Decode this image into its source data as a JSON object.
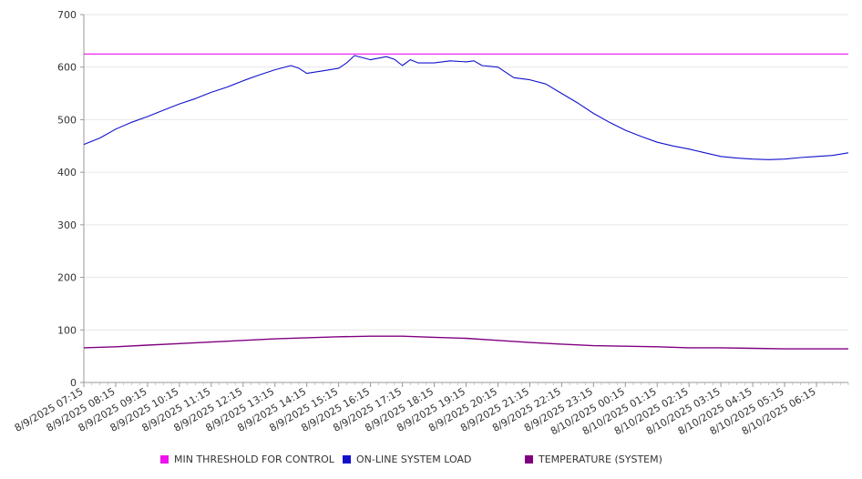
{
  "chart_data": {
    "type": "line",
    "ylim": [
      0,
      700
    ],
    "yticks": [
      0,
      100,
      200,
      300,
      400,
      500,
      600,
      700
    ],
    "grid": "horizontal",
    "legend_position": "bottom",
    "x_tick_labels": [
      "8/9/2025 07:15",
      "8/9/2025 08:15",
      "8/9/2025 09:15",
      "8/9/2025 10:15",
      "8/9/2025 11:15",
      "8/9/2025 12:15",
      "8/9/2025 13:15",
      "8/9/2025 14:15",
      "8/9/2025 15:15",
      "8/9/2025 16:15",
      "8/9/2025 17:15",
      "8/9/2025 18:15",
      "8/9/2025 19:15",
      "8/9/2025 20:15",
      "8/9/2025 21:15",
      "8/9/2025 22:15",
      "8/9/2025 23:15",
      "8/10/2025 00:15",
      "8/10/2025 01:15",
      "8/10/2025 02:15",
      "8/10/2025 03:15",
      "8/10/2025 04:15",
      "8/10/2025 05:15",
      "8/10/2025 06:15"
    ],
    "x_range": [
      "8/9/2025 07:15",
      "8/10/2025 07:15"
    ],
    "series": [
      {
        "name": "MIN THRESHOLD FOR CONTROL",
        "color": "#ee11ee",
        "points": [
          [
            "8/9/2025 07:15",
            625
          ],
          [
            "8/10/2025 07:15",
            625
          ]
        ]
      },
      {
        "name": "ON-LINE SYSTEM LOAD",
        "color": "#1111cc",
        "points": [
          [
            "8/9/2025 07:15",
            453
          ],
          [
            "8/9/2025 07:45",
            465
          ],
          [
            "8/9/2025 08:15",
            482
          ],
          [
            "8/9/2025 08:45",
            495
          ],
          [
            "8/9/2025 09:15",
            506
          ],
          [
            "8/9/2025 09:45",
            518
          ],
          [
            "8/9/2025 10:15",
            530
          ],
          [
            "8/9/2025 10:45",
            540
          ],
          [
            "8/9/2025 11:15",
            552
          ],
          [
            "8/9/2025 11:45",
            562
          ],
          [
            "8/9/2025 12:15",
            574
          ],
          [
            "8/9/2025 12:45",
            585
          ],
          [
            "8/9/2025 13:15",
            595
          ],
          [
            "8/9/2025 13:45",
            603
          ],
          [
            "8/9/2025 14:00",
            598
          ],
          [
            "8/9/2025 14:15",
            588
          ],
          [
            "8/9/2025 14:45",
            593
          ],
          [
            "8/9/2025 15:15",
            598
          ],
          [
            "8/9/2025 15:30",
            608
          ],
          [
            "8/9/2025 15:45",
            622
          ],
          [
            "8/9/2025 16:15",
            614
          ],
          [
            "8/9/2025 16:45",
            620
          ],
          [
            "8/9/2025 17:00",
            615
          ],
          [
            "8/9/2025 17:15",
            603
          ],
          [
            "8/9/2025 17:30",
            614
          ],
          [
            "8/9/2025 17:45",
            608
          ],
          [
            "8/9/2025 18:15",
            608
          ],
          [
            "8/9/2025 18:45",
            612
          ],
          [
            "8/9/2025 19:15",
            610
          ],
          [
            "8/9/2025 19:30",
            612
          ],
          [
            "8/9/2025 19:45",
            603
          ],
          [
            "8/9/2025 20:15",
            600
          ],
          [
            "8/9/2025 20:45",
            580
          ],
          [
            "8/9/2025 21:15",
            576
          ],
          [
            "8/9/2025 21:45",
            568
          ],
          [
            "8/9/2025 22:15",
            550
          ],
          [
            "8/9/2025 22:45",
            532
          ],
          [
            "8/9/2025 23:15",
            512
          ],
          [
            "8/9/2025 23:45",
            495
          ],
          [
            "8/10/2025 00:15",
            480
          ],
          [
            "8/10/2025 00:45",
            468
          ],
          [
            "8/10/2025 01:15",
            457
          ],
          [
            "8/10/2025 01:45",
            450
          ],
          [
            "8/10/2025 02:15",
            444
          ],
          [
            "8/10/2025 02:45",
            437
          ],
          [
            "8/10/2025 03:15",
            430
          ],
          [
            "8/10/2025 03:45",
            427
          ],
          [
            "8/10/2025 04:15",
            425
          ],
          [
            "8/10/2025 04:45",
            424
          ],
          [
            "8/10/2025 05:15",
            425
          ],
          [
            "8/10/2025 05:45",
            428
          ],
          [
            "8/10/2025 06:15",
            430
          ],
          [
            "8/10/2025 06:45",
            432
          ],
          [
            "8/10/2025 07:15",
            437
          ]
        ]
      },
      {
        "name": "TEMPERATURE (SYSTEM)",
        "color": "#800080",
        "points": [
          [
            "8/9/2025 07:15",
            66
          ],
          [
            "8/9/2025 08:15",
            68
          ],
          [
            "8/9/2025 09:15",
            71
          ],
          [
            "8/9/2025 10:15",
            74
          ],
          [
            "8/9/2025 11:15",
            77
          ],
          [
            "8/9/2025 12:15",
            80
          ],
          [
            "8/9/2025 13:15",
            83
          ],
          [
            "8/9/2025 14:15",
            85
          ],
          [
            "8/9/2025 15:15",
            87
          ],
          [
            "8/9/2025 16:15",
            88
          ],
          [
            "8/9/2025 17:15",
            88
          ],
          [
            "8/9/2025 18:15",
            86
          ],
          [
            "8/9/2025 19:15",
            84
          ],
          [
            "8/9/2025 20:15",
            80
          ],
          [
            "8/9/2025 21:15",
            76
          ],
          [
            "8/9/2025 22:15",
            73
          ],
          [
            "8/9/2025 23:15",
            70
          ],
          [
            "8/10/2025 00:15",
            69
          ],
          [
            "8/10/2025 01:15",
            68
          ],
          [
            "8/10/2025 02:15",
            66
          ],
          [
            "8/10/2025 03:15",
            66
          ],
          [
            "8/10/2025 04:15",
            65
          ],
          [
            "8/10/2025 05:15",
            64
          ],
          [
            "8/10/2025 06:15",
            64
          ],
          [
            "8/10/2025 07:15",
            64
          ]
        ]
      }
    ]
  }
}
